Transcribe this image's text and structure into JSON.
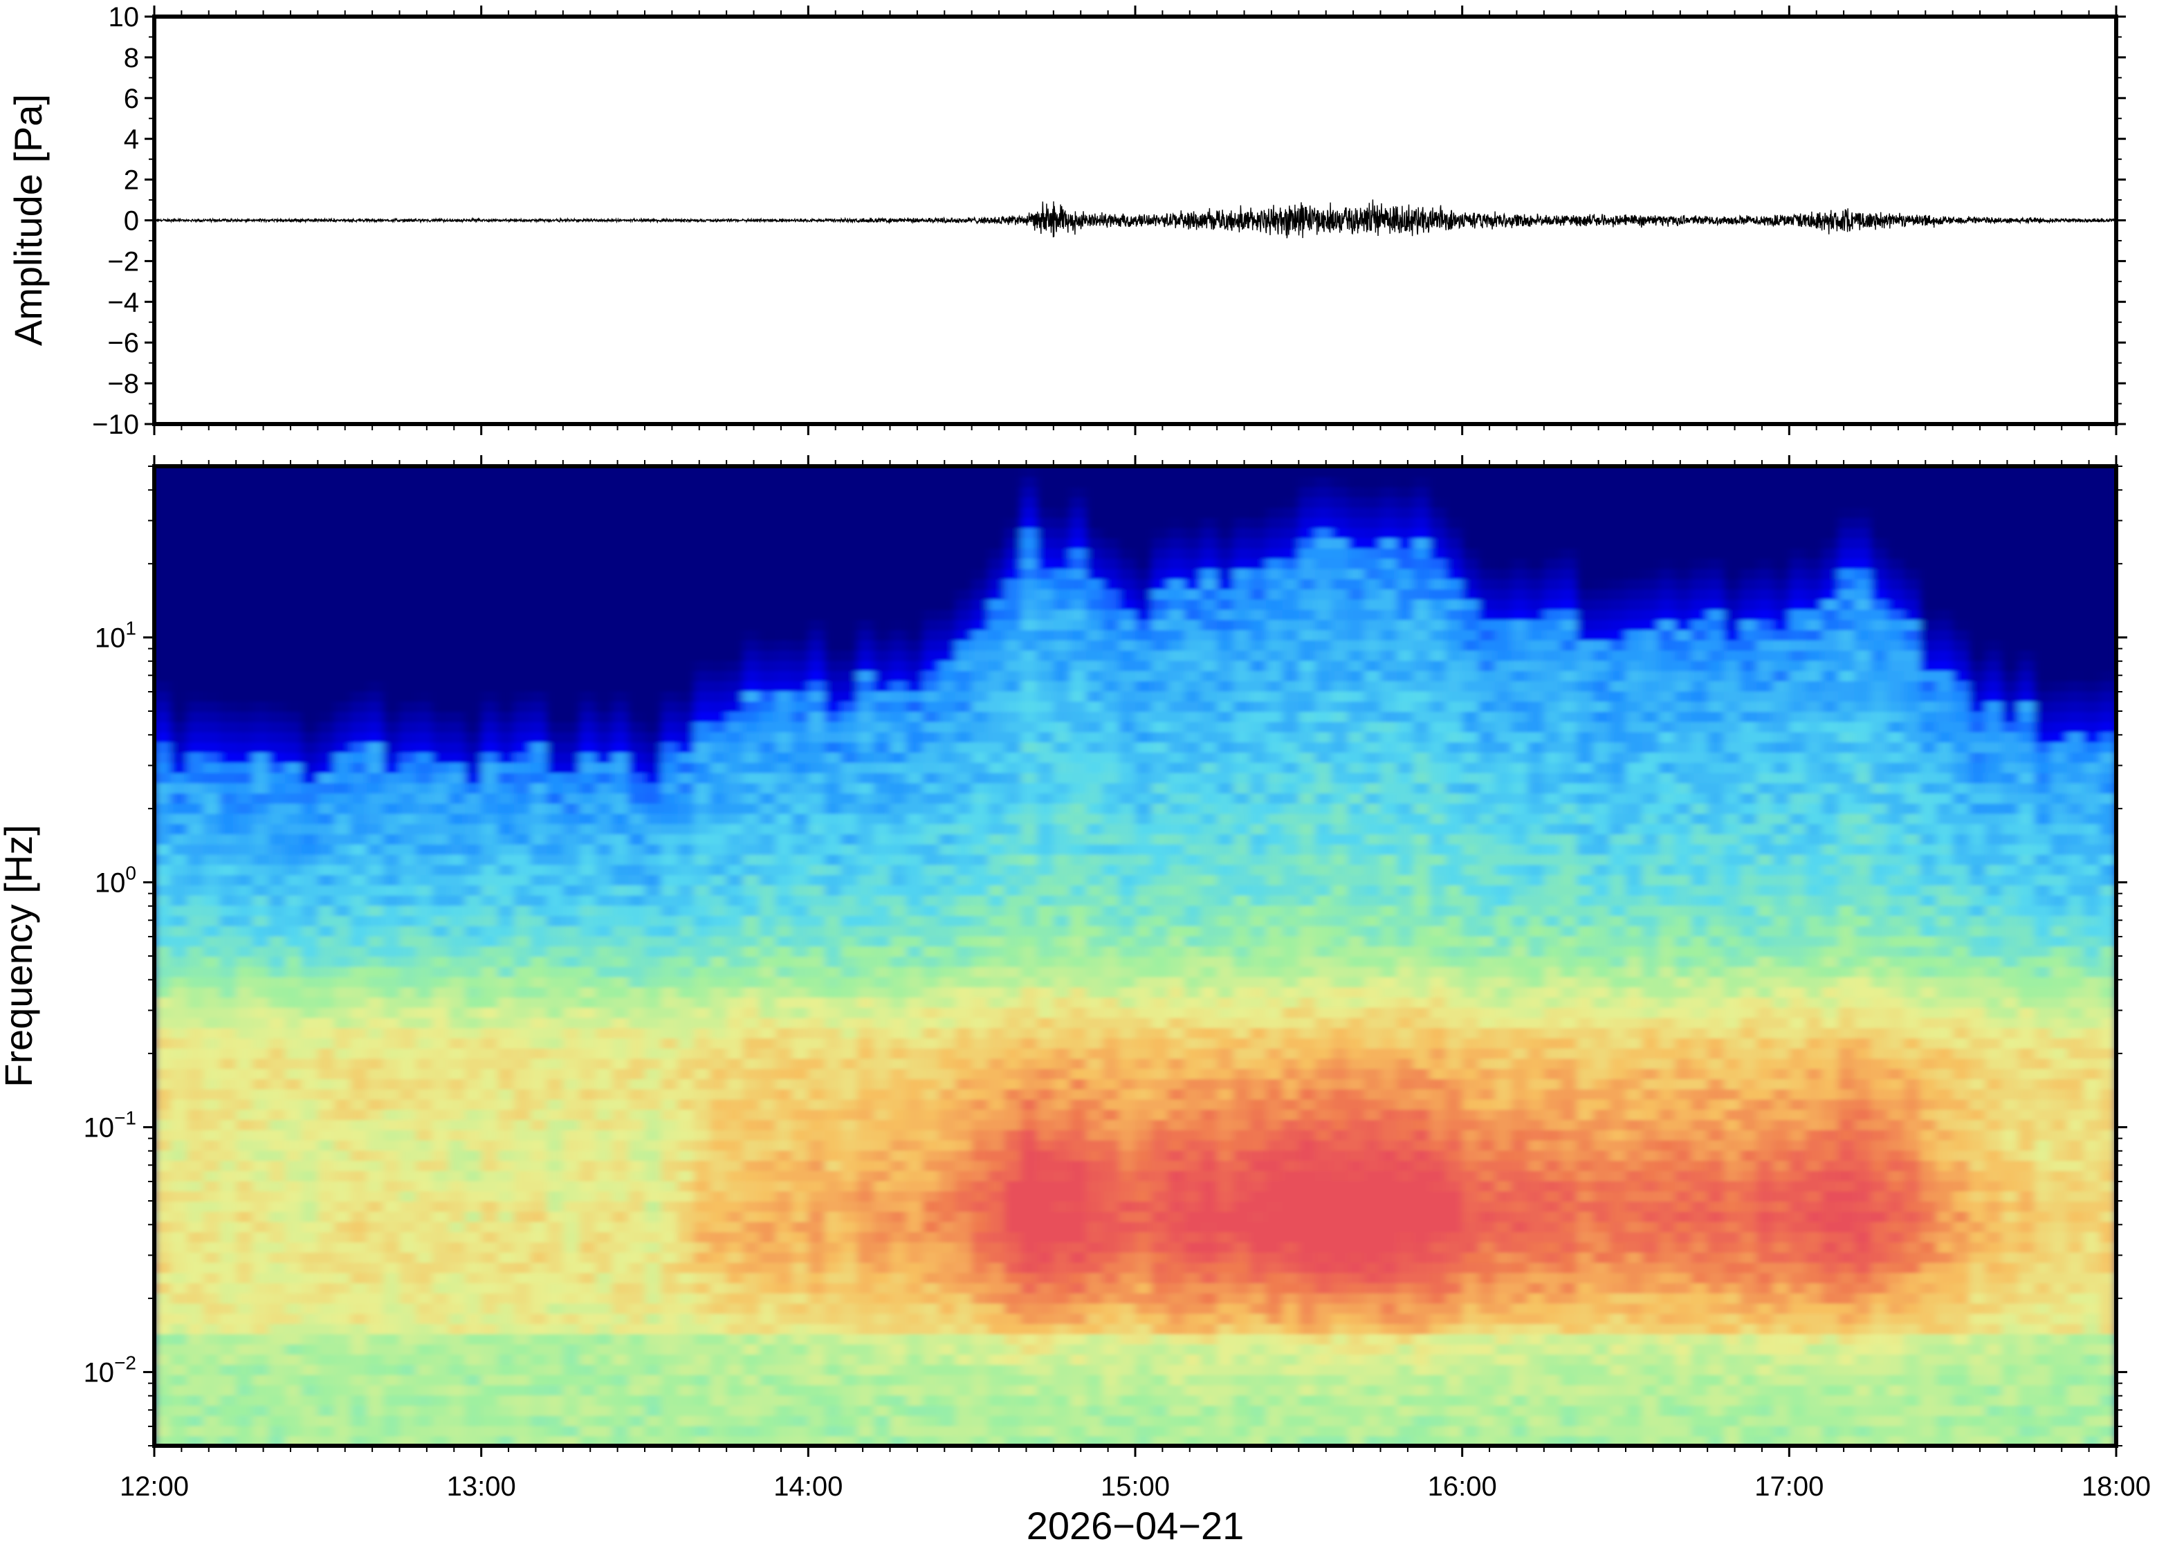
{
  "chart_data": [
    {
      "type": "line",
      "panel": "waveform",
      "ylabel": "Amplitude [Pa]",
      "ylim": [
        -10,
        10
      ],
      "y_ticks": [
        10,
        8,
        6,
        4,
        2,
        0,
        -2,
        -4,
        -6,
        -8,
        -10
      ],
      "y_tick_labels": [
        "10",
        "8",
        "6",
        "4",
        "2",
        "0",
        "−2",
        "−4",
        "−6",
        "−8",
        "−10"
      ],
      "xlim": [
        "12:00",
        "18:00"
      ],
      "line_color": "#000000",
      "envelope": {
        "x": [
          "12:00",
          "12:30",
          "13:00",
          "13:30",
          "14:00",
          "14:30",
          "14:40",
          "14:45",
          "14:50",
          "15:00",
          "15:10",
          "15:20",
          "15:30",
          "15:40",
          "15:50",
          "16:00",
          "16:15",
          "16:30",
          "16:45",
          "17:00",
          "17:10",
          "17:20",
          "17:30",
          "17:40",
          "18:00"
        ],
        "max_abs": [
          0.1,
          0.1,
          0.1,
          0.1,
          0.1,
          0.2,
          0.4,
          1.3,
          0.6,
          0.4,
          0.6,
          0.8,
          1.3,
          1.0,
          1.1,
          0.7,
          0.4,
          0.4,
          0.3,
          0.4,
          0.9,
          0.5,
          0.3,
          0.2,
          0.1
        ]
      }
    },
    {
      "type": "heatmap",
      "panel": "spectrogram",
      "ylabel": "Frequency [Hz]",
      "xlabel": "2026−04−21",
      "yscale": "log",
      "ylim": [
        0.005,
        50
      ],
      "y_ticks": [
        0.01,
        0.1,
        1,
        10
      ],
      "y_tick_labels": [
        {
          "base": "10",
          "exp": "−2"
        },
        {
          "base": "10",
          "exp": "−1"
        },
        {
          "base": "10",
          "exp": "0"
        },
        {
          "base": "10",
          "exp": "1"
        }
      ],
      "xlim": [
        "12:00",
        "18:00"
      ],
      "x_ticks": [
        "12:00",
        "13:00",
        "14:00",
        "15:00",
        "16:00",
        "17:00",
        "18:00"
      ],
      "colormap": [
        "#00007f",
        "#0000ff",
        "#1e90ff",
        "#55d8f0",
        "#9ff0a0",
        "#e8f090",
        "#f7c060",
        "#f07a50",
        "#e8505a"
      ],
      "activity_profile": {
        "x": [
          "12:00",
          "12:30",
          "13:00",
          "13:20",
          "13:35",
          "13:40",
          "14:00",
          "14:20",
          "14:30",
          "14:40",
          "14:50",
          "15:00",
          "15:10",
          "15:20",
          "15:30",
          "15:40",
          "15:50",
          "16:00",
          "16:20",
          "16:40",
          "17:00",
          "17:10",
          "17:20",
          "17:30",
          "17:40",
          "17:50",
          "18:00"
        ],
        "intensity": [
          0.15,
          0.12,
          0.1,
          0.12,
          0.1,
          0.3,
          0.35,
          0.38,
          0.5,
          0.85,
          0.75,
          0.6,
          0.75,
          0.7,
          0.85,
          0.8,
          0.85,
          0.65,
          0.55,
          0.55,
          0.6,
          0.75,
          0.6,
          0.4,
          0.25,
          0.2,
          0.2
        ]
      }
    }
  ]
}
